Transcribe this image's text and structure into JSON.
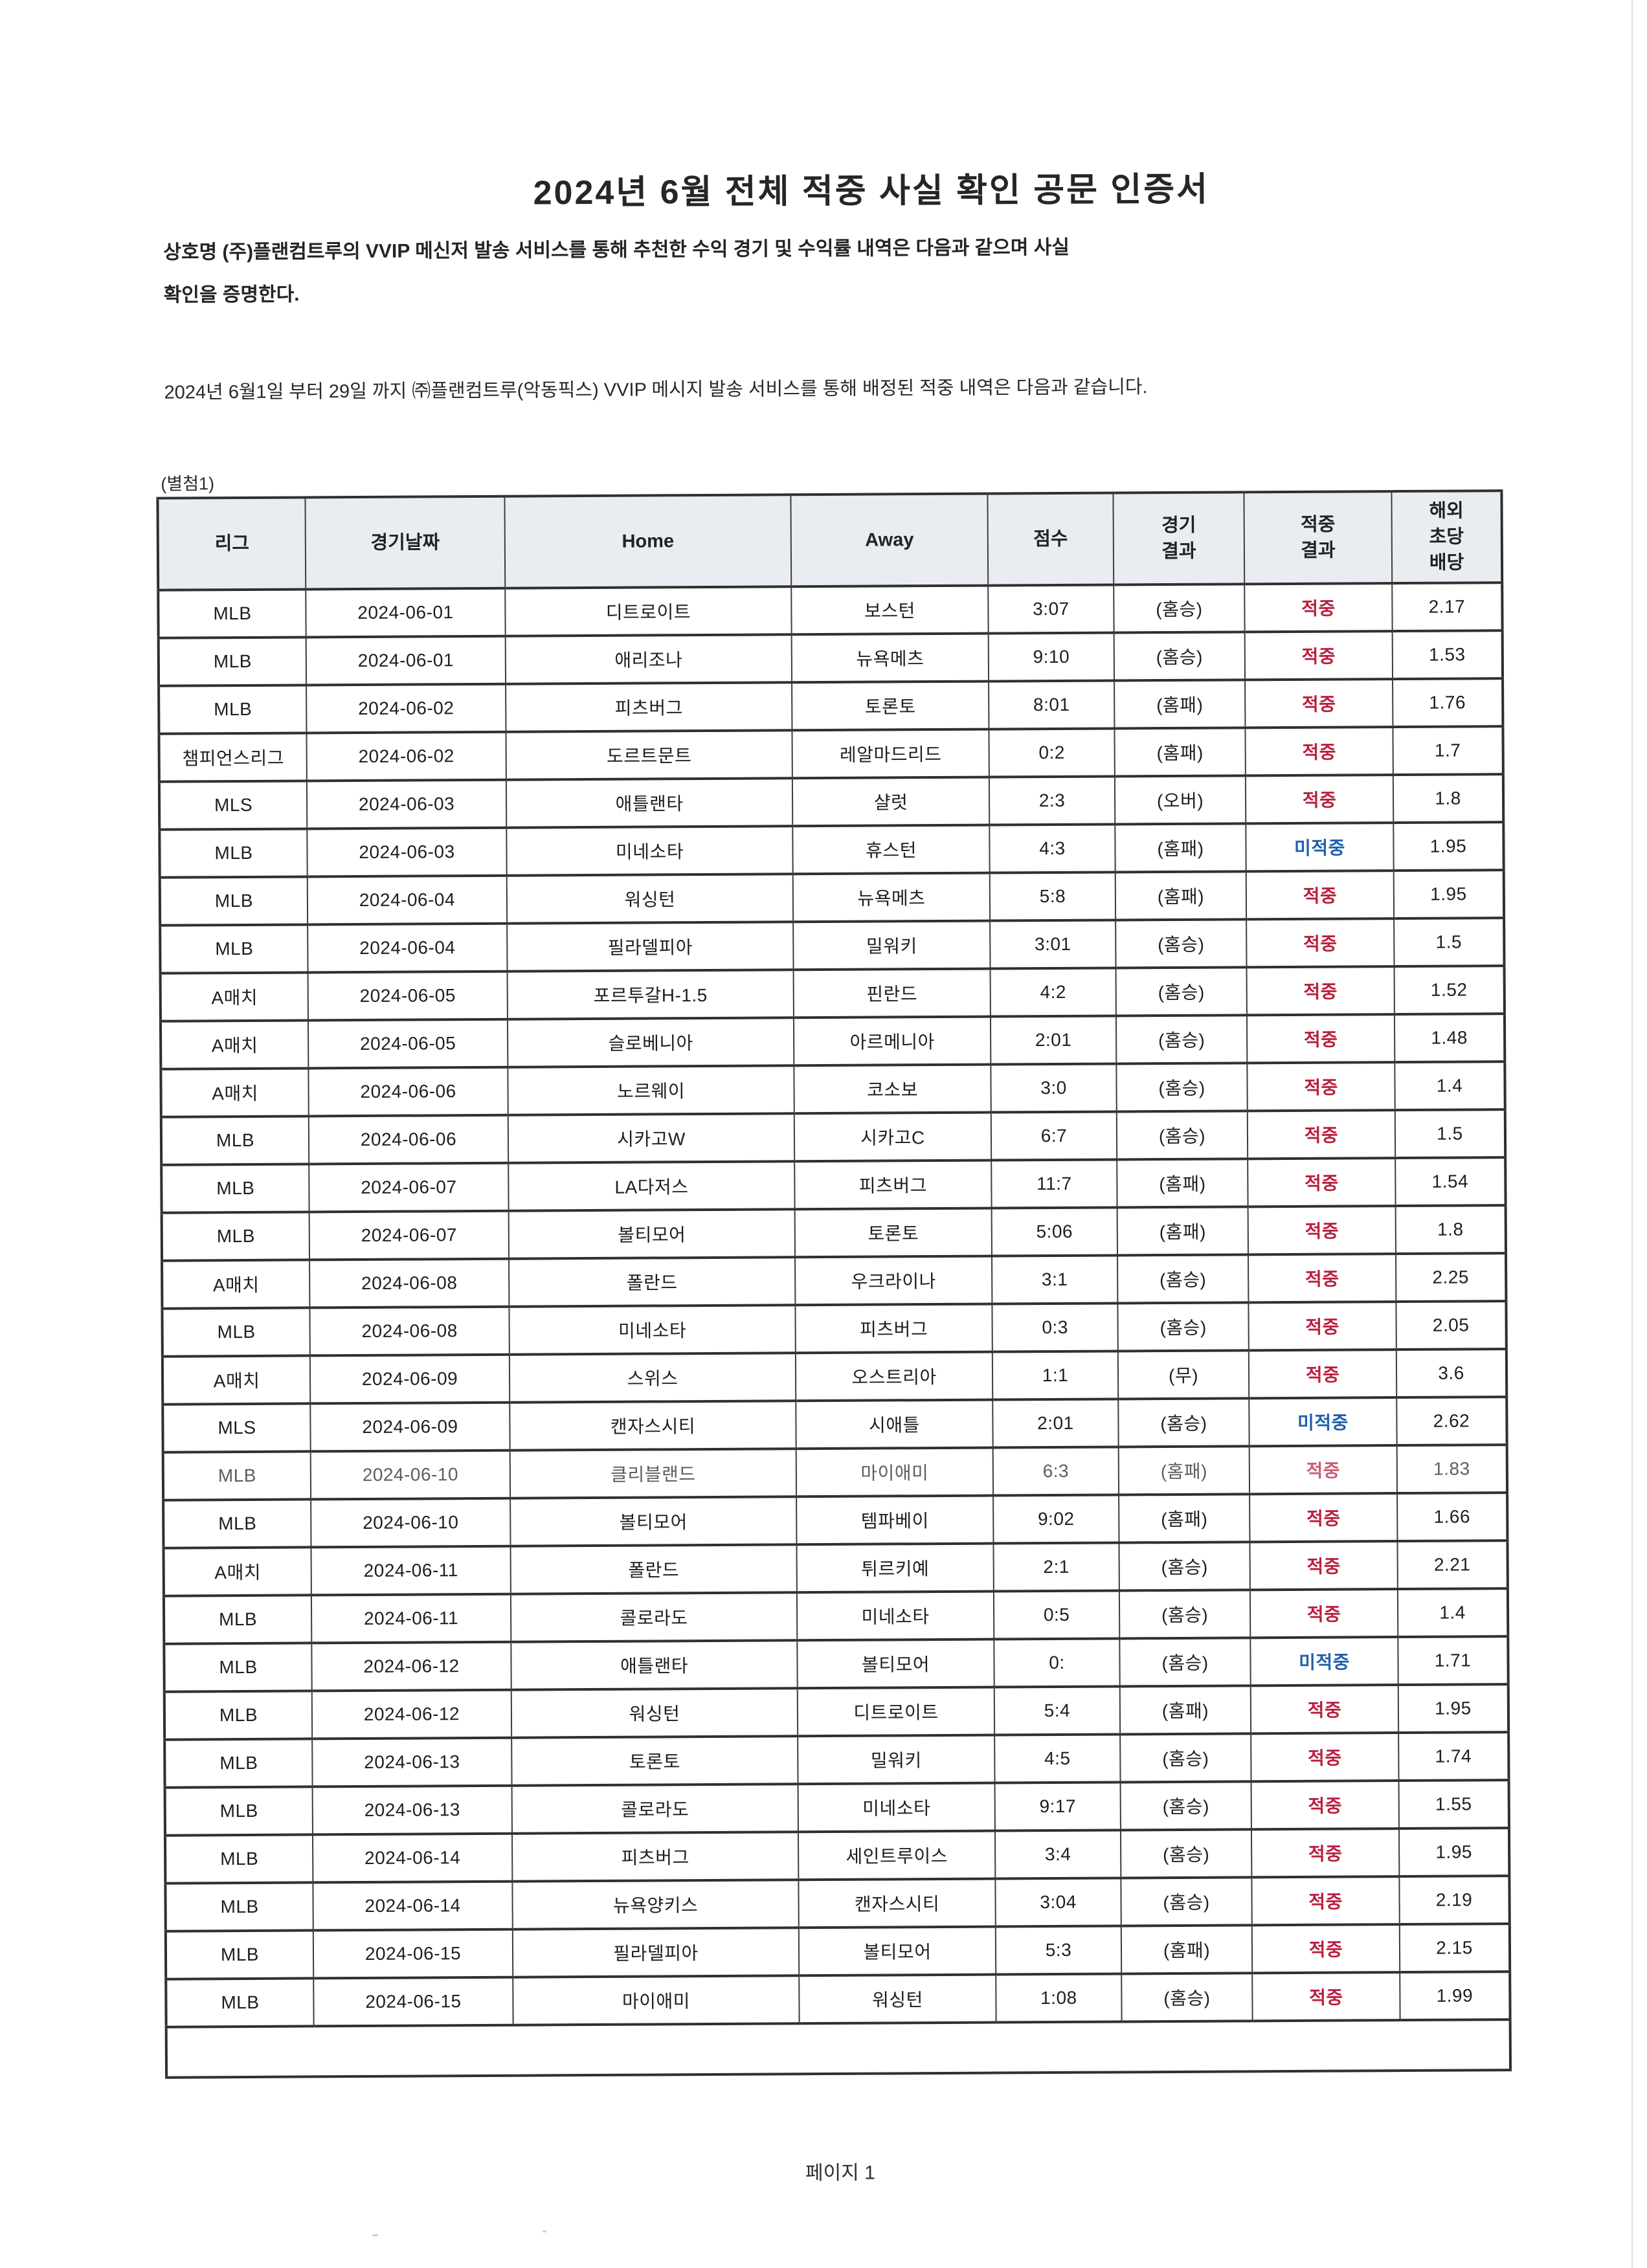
{
  "document": {
    "title": "2024년 6월 전체 적중 사실 확인 공문 인증서",
    "intro_lines": [
      "상호명 (주)플랜컴트루의 VVIP 메신저 발송 서비스를 통해 추천한 수익 경기 및 수익률 내역은 다음과 같으며 사실",
      "확인을 증명한다."
    ],
    "period_line": "2024년 6월1일 부터 29일 까지 ㈜플랜컴트루(악동픽스) VVIP 메시지 발송 서비스를 통해 배정된 적중 내역은 다음과 같습니다.",
    "attachment_label": "(별첨1)",
    "footer": "페이지 1"
  },
  "colors": {
    "hit": "#bb1e3e",
    "miss": "#1f5fad",
    "header_bg": "#e9edf2"
  },
  "table": {
    "column_keys": [
      "league",
      "date",
      "home",
      "away",
      "score",
      "game_result",
      "hit_result",
      "odds"
    ],
    "header_lines": [
      [
        "리그"
      ],
      [
        "경기날짜"
      ],
      [
        "Home"
      ],
      [
        "Away"
      ],
      [
        "점수"
      ],
      [
        "경기",
        "결과"
      ],
      [
        "적중",
        "결과"
      ],
      [
        "해외",
        "초당",
        "배당"
      ]
    ],
    "miss_label": "미적중",
    "rows": [
      {
        "league": "MLB",
        "date": "2024-06-01",
        "home": "디트로이트",
        "away": "보스턴",
        "score": "3:07",
        "game_result": "(홈승)",
        "hit_result": "적중",
        "odds": "2.17"
      },
      {
        "league": "MLB",
        "date": "2024-06-01",
        "home": "애리조나",
        "away": "뉴욕메츠",
        "score": "9:10",
        "game_result": "(홈승)",
        "hit_result": "적중",
        "odds": "1.53"
      },
      {
        "league": "MLB",
        "date": "2024-06-02",
        "home": "피츠버그",
        "away": "토론토",
        "score": "8:01",
        "game_result": "(홈패)",
        "hit_result": "적중",
        "odds": "1.76"
      },
      {
        "league": "챔피언스리그",
        "date": "2024-06-02",
        "home": "도르트문트",
        "away": "레알마드리드",
        "score": "0:2",
        "game_result": "(홈패)",
        "hit_result": "적중",
        "odds": "1.7"
      },
      {
        "league": "MLS",
        "date": "2024-06-03",
        "home": "애틀랜타",
        "away": "샬럿",
        "score": "2:3",
        "game_result": "(오버)",
        "hit_result": "적중",
        "odds": "1.8"
      },
      {
        "league": "MLB",
        "date": "2024-06-03",
        "home": "미네소타",
        "away": "휴스턴",
        "score": "4:3",
        "game_result": "(홈패)",
        "hit_result": "미적중",
        "odds": "1.95"
      },
      {
        "league": "MLB",
        "date": "2024-06-04",
        "home": "워싱턴",
        "away": "뉴욕메츠",
        "score": "5:8",
        "game_result": "(홈패)",
        "hit_result": "적중",
        "odds": "1.95"
      },
      {
        "league": "MLB",
        "date": "2024-06-04",
        "home": "필라델피아",
        "away": "밀워키",
        "score": "3:01",
        "game_result": "(홈승)",
        "hit_result": "적중",
        "odds": "1.5"
      },
      {
        "league": "A매치",
        "date": "2024-06-05",
        "home": "포르투갈H-1.5",
        "away": "핀란드",
        "score": "4:2",
        "game_result": "(홈승)",
        "hit_result": "적중",
        "odds": "1.52"
      },
      {
        "league": "A매치",
        "date": "2024-06-05",
        "home": "슬로베니아",
        "away": "아르메니아",
        "score": "2:01",
        "game_result": "(홈승)",
        "hit_result": "적중",
        "odds": "1.48"
      },
      {
        "league": "A매치",
        "date": "2024-06-06",
        "home": "노르웨이",
        "away": "코소보",
        "score": "3:0",
        "game_result": "(홈승)",
        "hit_result": "적중",
        "odds": "1.4"
      },
      {
        "league": "MLB",
        "date": "2024-06-06",
        "home": "시카고W",
        "away": "시카고C",
        "score": "6:7",
        "game_result": "(홈승)",
        "hit_result": "적중",
        "odds": "1.5"
      },
      {
        "league": "MLB",
        "date": "2024-06-07",
        "home": "LA다저스",
        "away": "피츠버그",
        "score": "11:7",
        "game_result": "(홈패)",
        "hit_result": "적중",
        "odds": "1.54"
      },
      {
        "league": "MLB",
        "date": "2024-06-07",
        "home": "볼티모어",
        "away": "토론토",
        "score": "5:06",
        "game_result": "(홈패)",
        "hit_result": "적중",
        "odds": "1.8"
      },
      {
        "league": "A매치",
        "date": "2024-06-08",
        "home": "폴란드",
        "away": "우크라이나",
        "score": "3:1",
        "game_result": "(홈승)",
        "hit_result": "적중",
        "odds": "2.25"
      },
      {
        "league": "MLB",
        "date": "2024-06-08",
        "home": "미네소타",
        "away": "피츠버그",
        "score": "0:3",
        "game_result": "(홈승)",
        "hit_result": "적중",
        "odds": "2.05"
      },
      {
        "league": "A매치",
        "date": "2024-06-09",
        "home": "스위스",
        "away": "오스트리아",
        "score": "1:1",
        "game_result": "(무)",
        "hit_result": "적중",
        "odds": "3.6"
      },
      {
        "league": "MLS",
        "date": "2024-06-09",
        "home": "캔자스시티",
        "away": "시애틀",
        "score": "2:01",
        "game_result": "(홈승)",
        "hit_result": "미적중",
        "odds": "2.62"
      },
      {
        "league": "MLB",
        "date": "2024-06-10",
        "home": "클리블랜드",
        "away": "마이애미",
        "score": "6:3",
        "game_result": "(홈패)",
        "hit_result": "적중",
        "odds": "1.83",
        "faded": true
      },
      {
        "league": "MLB",
        "date": "2024-06-10",
        "home": "볼티모어",
        "away": "템파베이",
        "score": "9:02",
        "game_result": "(홈패)",
        "hit_result": "적중",
        "odds": "1.66"
      },
      {
        "league": "A매치",
        "date": "2024-06-11",
        "home": "폴란드",
        "away": "튀르키예",
        "score": "2:1",
        "game_result": "(홈승)",
        "hit_result": "적중",
        "odds": "2.21"
      },
      {
        "league": "MLB",
        "date": "2024-06-11",
        "home": "콜로라도",
        "away": "미네소타",
        "score": "0:5",
        "game_result": "(홈승)",
        "hit_result": "적중",
        "odds": "1.4"
      },
      {
        "league": "MLB",
        "date": "2024-06-12",
        "home": "애틀랜타",
        "away": "볼티모어",
        "score": "0:",
        "game_result": "(홈승)",
        "hit_result": "미적중",
        "odds": "1.71"
      },
      {
        "league": "MLB",
        "date": "2024-06-12",
        "home": "워싱턴",
        "away": "디트로이트",
        "score": "5:4",
        "game_result": "(홈패)",
        "hit_result": "적중",
        "odds": "1.95"
      },
      {
        "league": "MLB",
        "date": "2024-06-13",
        "home": "토론토",
        "away": "밀워키",
        "score": "4:5",
        "game_result": "(홈승)",
        "hit_result": "적중",
        "odds": "1.74"
      },
      {
        "league": "MLB",
        "date": "2024-06-13",
        "home": "콜로라도",
        "away": "미네소타",
        "score": "9:17",
        "game_result": "(홈승)",
        "hit_result": "적중",
        "odds": "1.55"
      },
      {
        "league": "MLB",
        "date": "2024-06-14",
        "home": "피츠버그",
        "away": "세인트루이스",
        "score": "3:4",
        "game_result": "(홈승)",
        "hit_result": "적중",
        "odds": "1.95"
      },
      {
        "league": "MLB",
        "date": "2024-06-14",
        "home": "뉴욕양키스",
        "away": "캔자스시티",
        "score": "3:04",
        "game_result": "(홈승)",
        "hit_result": "적중",
        "odds": "2.19"
      },
      {
        "league": "MLB",
        "date": "2024-06-15",
        "home": "필라델피아",
        "away": "볼티모어",
        "score": "5:3",
        "game_result": "(홈패)",
        "hit_result": "적중",
        "odds": "2.15"
      },
      {
        "league": "MLB",
        "date": "2024-06-15",
        "home": "마이애미",
        "away": "워싱턴",
        "score": "1:08",
        "game_result": "(홈승)",
        "hit_result": "적중",
        "odds": "1.99"
      }
    ]
  }
}
